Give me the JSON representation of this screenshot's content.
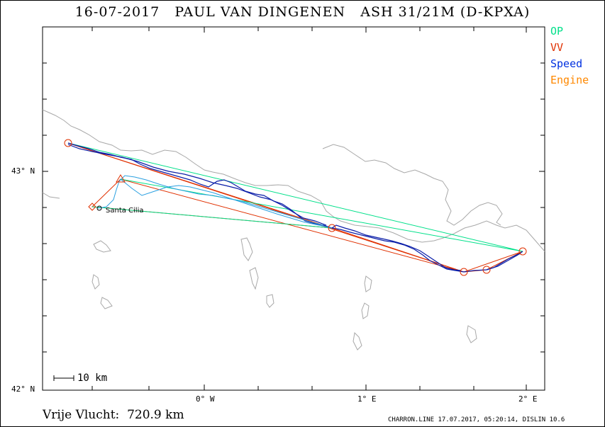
{
  "title": "16-07-2017   PAUL VAN DINGENEN   ASH 31/21M (D-KPXA)",
  "legend": {
    "items": [
      {
        "label": "OP",
        "color": "#00e08a"
      },
      {
        "label": "VV",
        "color": "#e03000"
      },
      {
        "label": "Speed",
        "color": "#0030e0"
      },
      {
        "label": "Engine",
        "color": "#ff8800"
      }
    ]
  },
  "axes": {
    "y_labels": [
      "43° N",
      "42° N"
    ],
    "x_labels": [
      "0° W",
      "1° E",
      "2° E"
    ]
  },
  "map": {
    "place_label": "Santa Cilia",
    "scale_label": "10 km"
  },
  "summary": "Vrije Vlucht:  720.9 km",
  "footer": "CHARRON.LINE 17.07.2017, 05:20:14, DISLIN 10.6"
}
